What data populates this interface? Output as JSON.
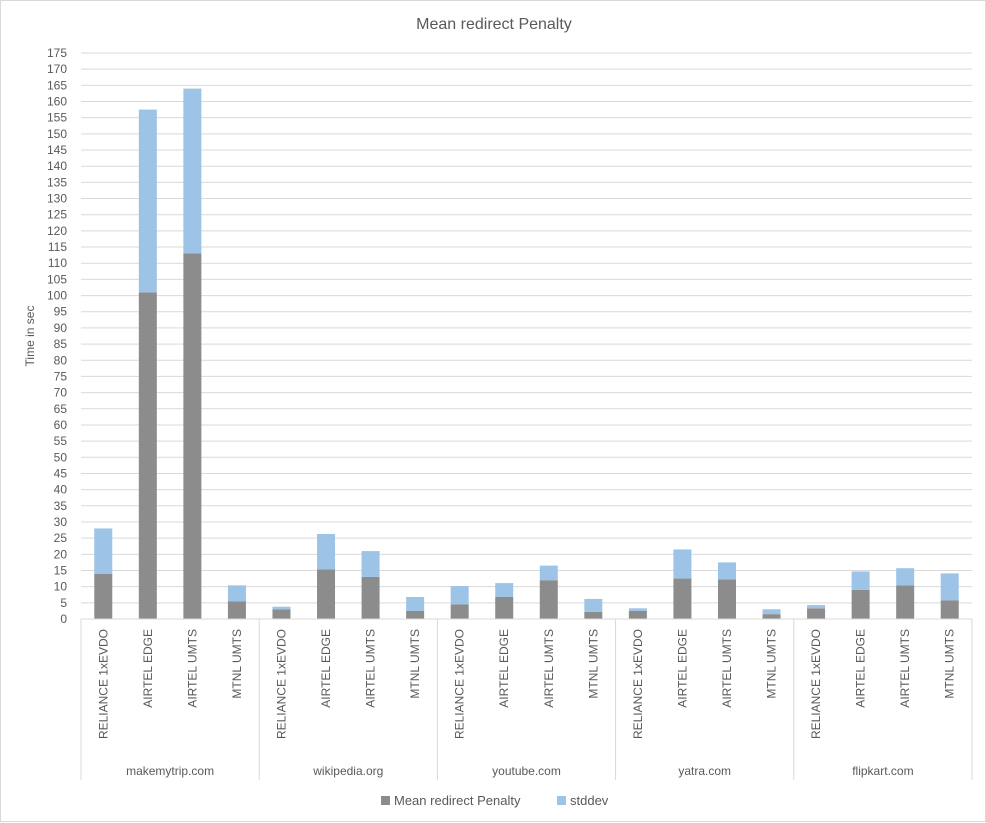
{
  "chart_data": {
    "type": "bar",
    "stacked": true,
    "title": "Mean redirect Penalty",
    "ylabel": "Time in sec",
    "ylim": [
      0,
      175
    ],
    "ytick_step": 5,
    "grid": true,
    "legend_position": "bottom",
    "groups": [
      "makemytrip.com",
      "wikipedia.org",
      "youtube.com",
      "yatra.com",
      "flipkart.com"
    ],
    "categories": [
      "RELIANCE 1xEVDO",
      "AIRTEL EDGE",
      "AIRTEL UMTS",
      "MTNL UMTS"
    ],
    "series": [
      {
        "name": "Mean redirect Penalty",
        "color": "#8c8c8c",
        "values": [
          [
            14,
            101,
            113,
            5.5
          ],
          [
            3,
            15.3,
            13,
            2.5
          ],
          [
            4.5,
            6.8,
            12,
            2.2
          ],
          [
            2.5,
            12.5,
            12.2,
            1.5
          ],
          [
            3.3,
            9,
            10.4,
            5.8
          ]
        ]
      },
      {
        "name": "stddev",
        "color": "#9dc3e6",
        "values": [
          [
            14,
            56.5,
            51,
            4.9
          ],
          [
            0.8,
            11,
            8,
            4.3
          ],
          [
            5.7,
            4.3,
            4.5,
            4
          ],
          [
            0.8,
            9,
            5.3,
            1.5
          ],
          [
            1,
            5.7,
            5.3,
            8.3
          ]
        ]
      }
    ]
  }
}
